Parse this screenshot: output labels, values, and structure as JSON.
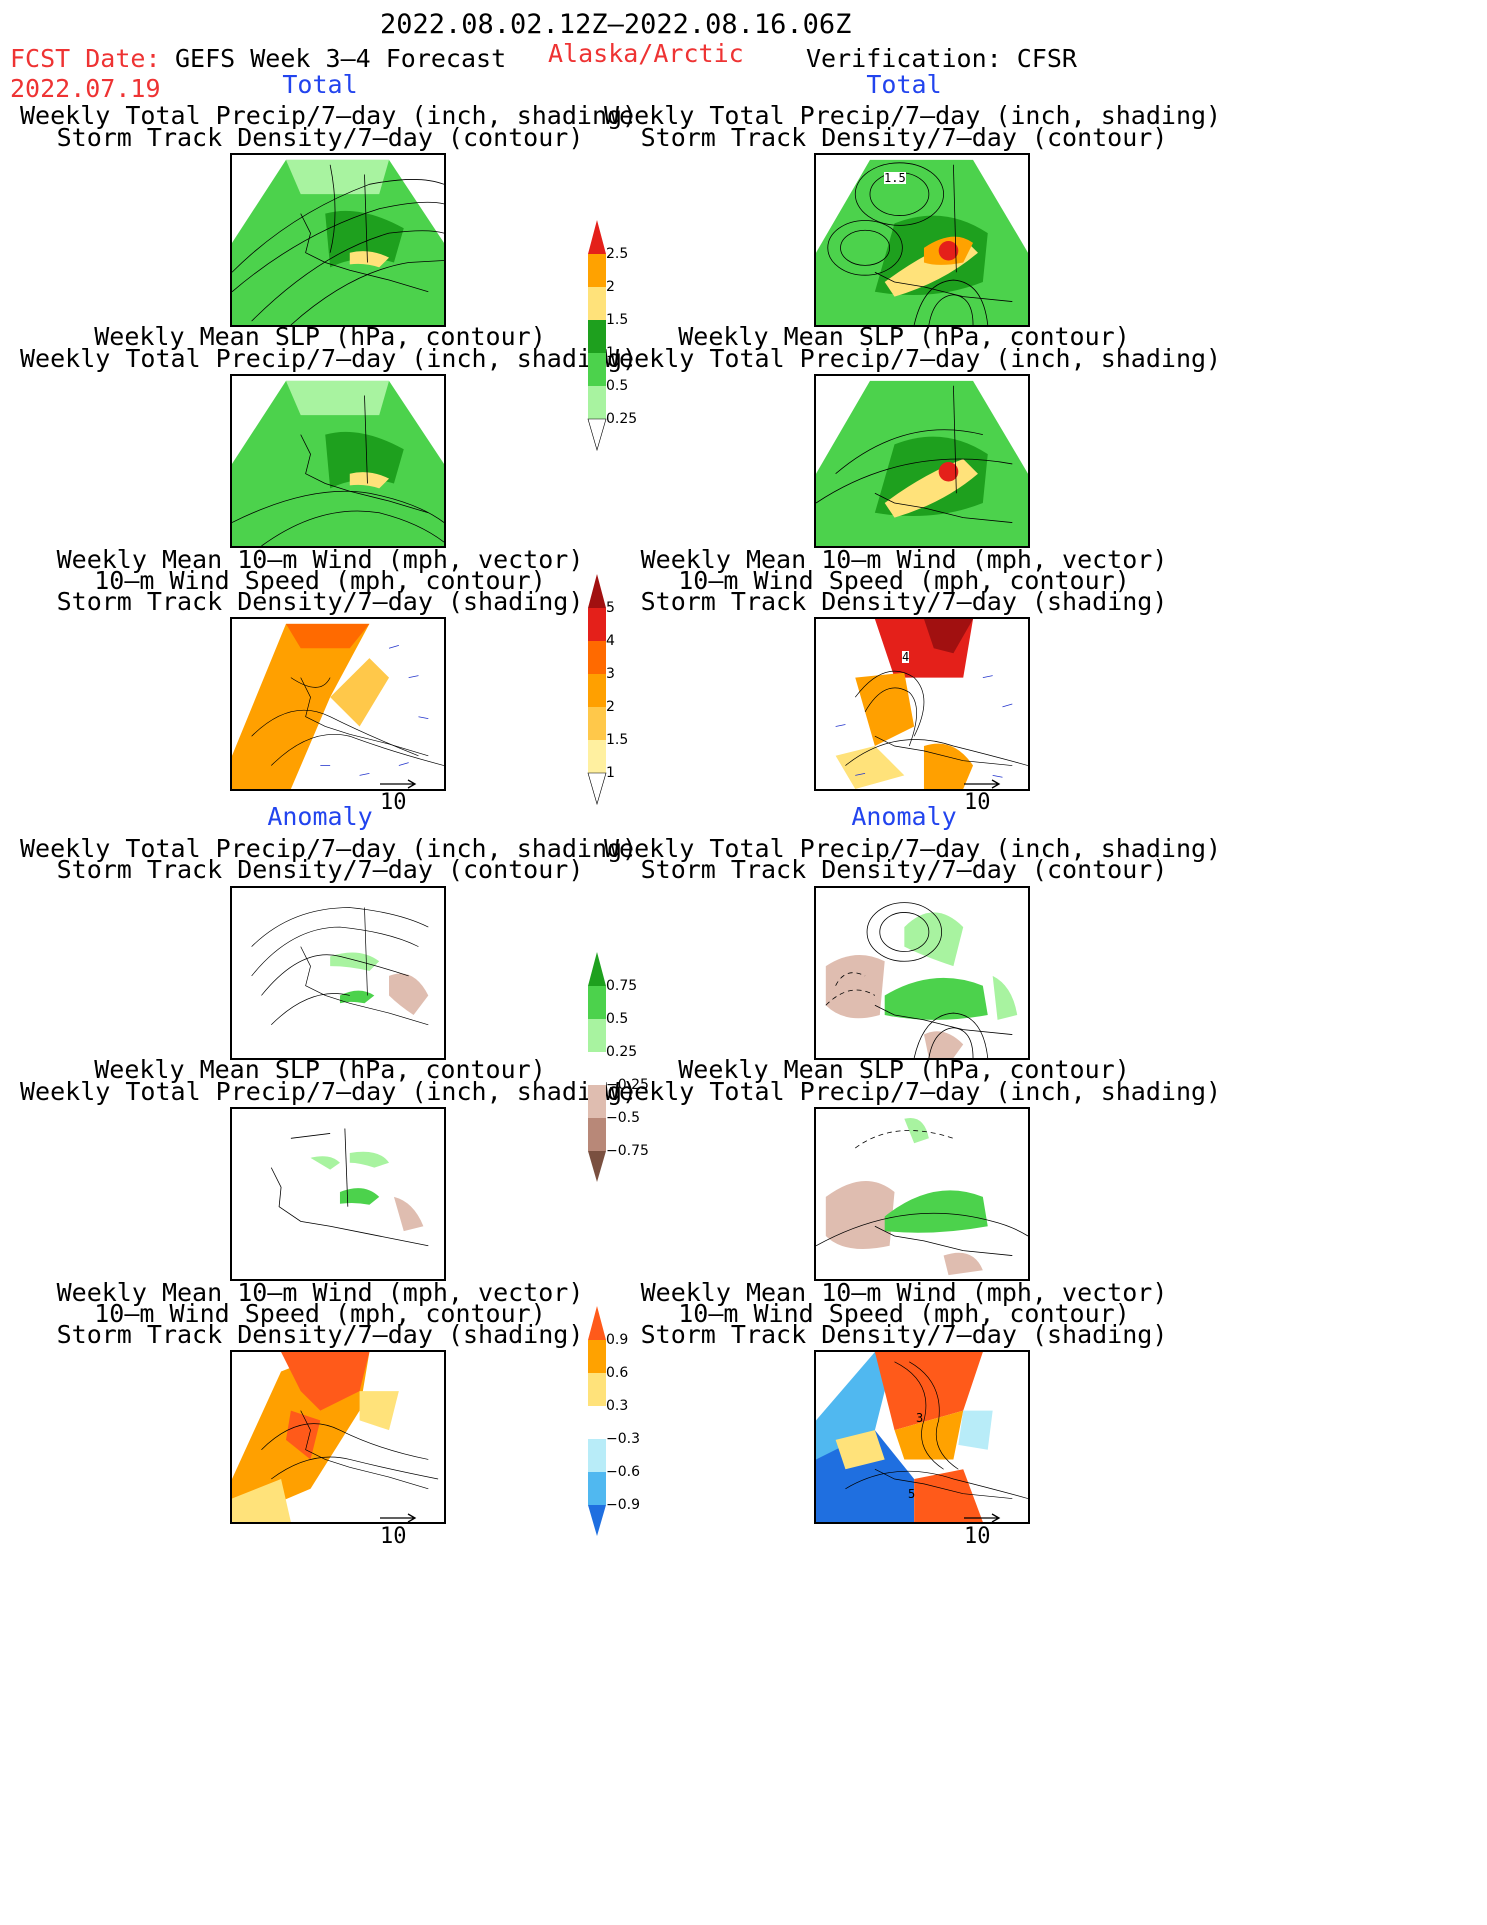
{
  "header": {
    "date_range": "2022.08.02.12Z–2022.08.16.06Z",
    "fcst_label": "FCST Date:",
    "fcst_value": "2022.07.19",
    "model": "GEFS Week 3–4 Forecast",
    "region": "Alaska/Arctic",
    "verification": "Verification: CFSR"
  },
  "sections": {
    "total": "Total",
    "anomaly": "Anomaly"
  },
  "titles": {
    "precip_track": [
      "Weekly Total Precip/7–day (inch, shading)",
      "Storm Track Density/7–day (contour)"
    ],
    "slp_precip": [
      "Weekly Mean SLP (hPa, contour)",
      "Weekly Total Precip/7–day (inch, shading)"
    ],
    "wind": [
      "Weekly Mean 10–m Wind (mph, vector)",
      "10–m Wind Speed (mph, contour)",
      "Storm Track Density/7–day (shading)"
    ]
  },
  "panel_labels": {
    "obs_total_track_contour": "1.5",
    "obs_total_wind_contour": "4",
    "obs_anom_wind_contour_a": "3",
    "obs_anom_wind_contour_b": "5"
  },
  "vector_ref": "10",
  "colorbars": {
    "precip_total": {
      "labels": [
        "2.5",
        "2",
        "1.5",
        "1",
        "0.5",
        "0.25"
      ],
      "colors": [
        "#e4201a",
        "#ffa200",
        "#ffe27a",
        "#1ea01e",
        "#4cd24c",
        "#a8f3a0"
      ]
    },
    "track_total": {
      "labels": [
        "5",
        "4",
        "3",
        "2",
        "1.5",
        "1"
      ],
      "colors": [
        "#a11010",
        "#e4201a",
        "#ff6a00",
        "#ffa000",
        "#ffc84a",
        "#fff0a0"
      ]
    },
    "precip_anom": {
      "labels": [
        "0.75",
        "0.5",
        "0.25",
        "−0.25",
        "−0.5",
        "−0.75"
      ],
      "colors": [
        "#1ea01e",
        "#4cd24c",
        "#a8f3a0",
        "#ffffff",
        "#dfbdb0",
        "#b88878",
        "#7a5040"
      ]
    },
    "track_anom": {
      "labels": [
        "0.9",
        "0.6",
        "0.3",
        "−0.3",
        "−0.6",
        "−0.9"
      ],
      "colors": [
        "#ff5a1a",
        "#ffa200",
        "#ffe27a",
        "#ffffff",
        "#b8ecf8",
        "#50b8f0",
        "#1f6fe0"
      ]
    }
  }
}
